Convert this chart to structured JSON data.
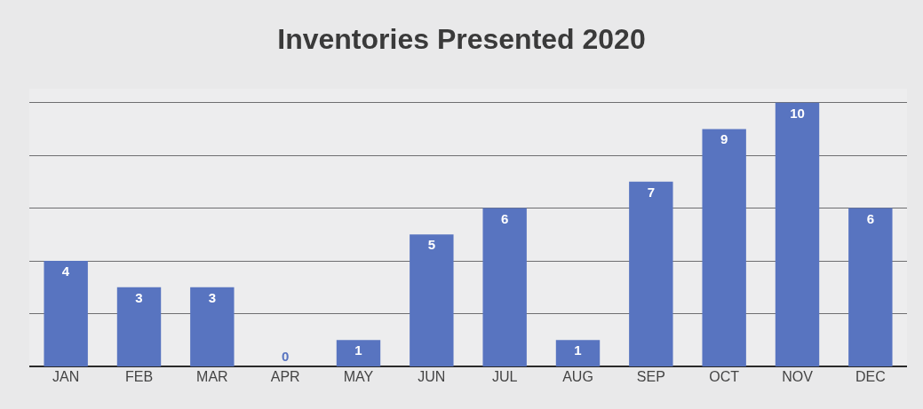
{
  "chart_data": {
    "type": "bar",
    "title": "Inventories Presented 2020",
    "categories": [
      "JAN",
      "FEB",
      "MAR",
      "APR",
      "MAY",
      "JUN",
      "JUL",
      "AUG",
      "SEP",
      "OCT",
      "NOV",
      "DEC"
    ],
    "values": [
      4,
      3,
      3,
      0,
      1,
      5,
      6,
      1,
      7,
      9,
      10,
      6
    ],
    "color": "#5874c0",
    "grid": "y",
    "tick_labels": "x",
    "data_labels": true
  }
}
